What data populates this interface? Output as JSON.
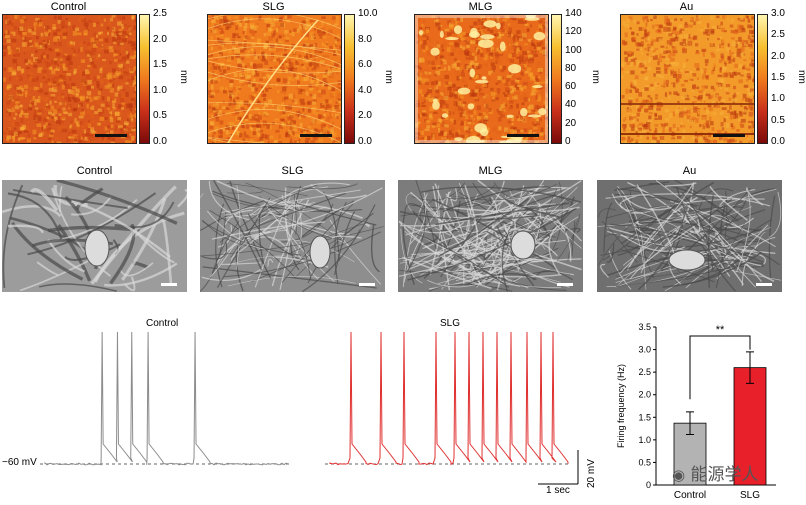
{
  "afm_panels": [
    {
      "title": "Control",
      "cbar_ticks": [
        "2.5",
        "2.0",
        "1.5",
        "1.0",
        "0.5",
        "0.0"
      ],
      "unit": "nm",
      "max": 2.5
    },
    {
      "title": "SLG",
      "cbar_ticks": [
        "10.0",
        "8.0",
        "6.0",
        "4.0",
        "2.0",
        "0.0"
      ],
      "unit": "nm",
      "max": 10.0
    },
    {
      "title": "MLG",
      "cbar_ticks": [
        "140",
        "120",
        "100",
        "80",
        "60",
        "40",
        "20",
        "0"
      ],
      "unit": "nm",
      "max": 140
    },
    {
      "title": "Au",
      "cbar_ticks": [
        "3.0",
        "2.5",
        "2.0",
        "1.5",
        "1.0",
        "0.5",
        "0.0"
      ],
      "unit": "nm",
      "max": 3.0
    }
  ],
  "sem_panels": [
    {
      "title": "Control"
    },
    {
      "title": "SLG"
    },
    {
      "title": "MLG"
    },
    {
      "title": "Au"
    }
  ],
  "traces": {
    "control_title": "Control",
    "slg_title": "SLG",
    "baseline_label": "−60 mV",
    "scale_v": "20 mV",
    "scale_t": "1 sec",
    "control_spike_times": [
      0.55,
      0.7,
      0.84,
      1.0,
      1.46
    ],
    "slg_spike_times": [
      0.2,
      0.5,
      0.73,
      1.05,
      1.24,
      1.38,
      1.52,
      1.66,
      1.8,
      1.96,
      2.1,
      2.22
    ]
  },
  "chart_data": {
    "type": "bar",
    "categories": [
      "Control",
      "SLG"
    ],
    "values": [
      1.37,
      2.6
    ],
    "errors": [
      0.25,
      0.35
    ],
    "colors": [
      "#b3b3b3",
      "#e8202a"
    ],
    "ylabel": "Firing frequency (Hz)",
    "ylim": [
      0,
      3.5
    ],
    "yticks": [
      "0",
      "0.5",
      "1.0",
      "1.5",
      "2.0",
      "2.5",
      "3.0",
      "3.5"
    ],
    "significance": "**"
  },
  "watermark": "能源学人"
}
